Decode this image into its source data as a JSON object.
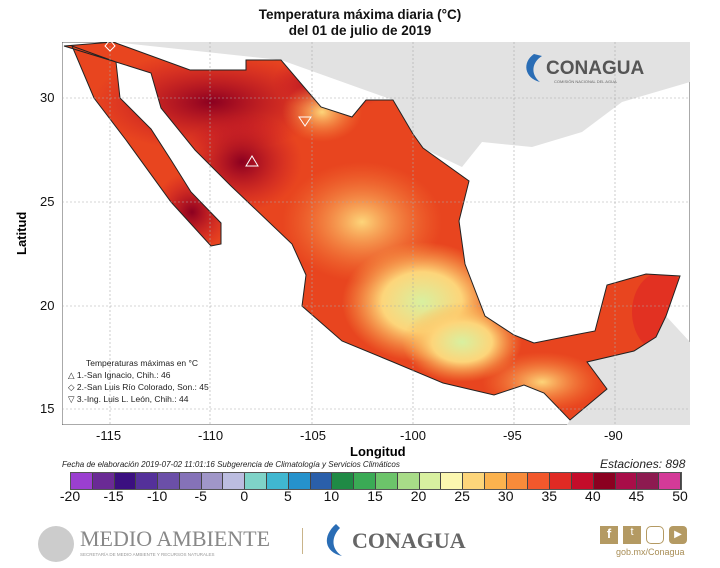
{
  "title": {
    "line1": "Temperatura máxima diaria (°C)",
    "line2": "del 01 de julio de 2019"
  },
  "axes": {
    "xlabel": "Longitud",
    "ylabel": "Latitud",
    "xticks": [
      "-115",
      "-110",
      "-105",
      "-100",
      "-95",
      "-90"
    ],
    "yticks": [
      "30",
      "25",
      "20",
      "15"
    ]
  },
  "legend": {
    "title": "Temperaturas máximas en °C",
    "items": [
      {
        "symbol": "triangle-up",
        "label": "1.-San Ignacio, Chih.: 46"
      },
      {
        "symbol": "diamond",
        "label": "2.-San Luis Río Colorado, Son.: 45"
      },
      {
        "symbol": "triangle-down",
        "label": "3.-Ing. Luis L. León, Chih.: 44"
      }
    ]
  },
  "fecha": "Fecha de elaboración 2019-07-02 11:01:16 Subgerencia de Climatología y Servicios Climáticos",
  "estaciones": "Estaciones:  898",
  "colorbar": {
    "labels": [
      "-20",
      "-15",
      "-10",
      "-5",
      "0",
      "5",
      "10",
      "15",
      "20",
      "25",
      "30",
      "35",
      "40",
      "45",
      "50"
    ],
    "colors": [
      "#9b3fd0",
      "#6a2a95",
      "#3b0f80",
      "#54309a",
      "#6b4fa8",
      "#8572b8",
      "#a096c8",
      "#bcbde0",
      "#7fd3c8",
      "#40b7d0",
      "#2592cc",
      "#2a5faa",
      "#1f8a45",
      "#3aaa55",
      "#6cc46a",
      "#a8dc88",
      "#d8f0a0",
      "#fbf7b0",
      "#fdd57a",
      "#fbb24e",
      "#f88b3a",
      "#f2582c",
      "#e02a24",
      "#c40c2a",
      "#8b0020",
      "#a80d48",
      "#8d1a50",
      "#d43a98"
    ]
  },
  "logos": {
    "conagua_top": "CONAGUA",
    "conagua_sub": "COMISIÓN NACIONAL DEL AGUA",
    "medio": "MEDIO AMBIENTE",
    "medio_sub": "SECRETARÍA DE MEDIO AMBIENTE Y RECURSOS NATURALES",
    "conagua": "CONAGUA",
    "web": "gob.mx/Conagua"
  }
}
